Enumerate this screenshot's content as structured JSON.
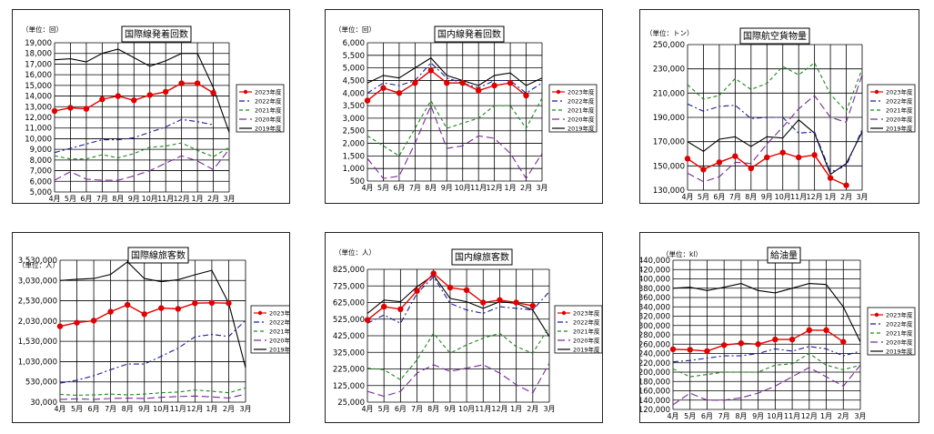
{
  "months": [
    "4月",
    "5月",
    "6月",
    "7月",
    "8月",
    "9月",
    "10月",
    "11月",
    "12月",
    "1月",
    "2月",
    "3月"
  ],
  "legend_labels": [
    "2023年度",
    "2022年度",
    "2021年度",
    "2020年度",
    "2019年度"
  ],
  "colors": {
    "y2023": "#e00000",
    "y2022": "#1a1a9a",
    "y2021": "#1a8a1a",
    "y2020": "#7a2a9a",
    "y2019": "#000000"
  },
  "chart_data": [
    {
      "type": "line",
      "title": "国際線発着回数",
      "unit": "（単位：回）",
      "ylim": [
        5000,
        19000
      ],
      "yticks": [
        5000,
        6000,
        7000,
        8000,
        9000,
        10000,
        11000,
        12000,
        13000,
        14000,
        15000,
        16000,
        17000,
        18000,
        19000
      ],
      "series": [
        {
          "name": "2023年度",
          "values": [
            12600,
            12900,
            12800,
            13700,
            14000,
            13600,
            14100,
            14400,
            15200,
            15200,
            14300,
            null
          ]
        },
        {
          "name": "2022年度",
          "values": [
            8700,
            9100,
            9500,
            9900,
            9900,
            10100,
            10600,
            11100,
            11800,
            11600,
            11300,
            null
          ]
        },
        {
          "name": "2021年度",
          "values": [
            8400,
            8100,
            8100,
            8500,
            8200,
            8600,
            9200,
            9300,
            9600,
            8900,
            8300,
            9200
          ]
        },
        {
          "name": "2020年度",
          "values": [
            6100,
            6900,
            6200,
            6100,
            6100,
            6500,
            7000,
            7700,
            8400,
            7900,
            7100,
            9000
          ]
        },
        {
          "name": "2019年度",
          "values": [
            17400,
            17500,
            17200,
            18000,
            18400,
            17600,
            16800,
            17300,
            18000,
            18000,
            14800,
            10600
          ]
        }
      ]
    },
    {
      "type": "line",
      "title": "国内線発着回数",
      "unit": "（単位：回）",
      "ylim": [
        500,
        6000
      ],
      "yticks": [
        500,
        1000,
        1500,
        2000,
        2500,
        3000,
        3500,
        4000,
        4500,
        5000,
        5500,
        6000
      ],
      "series": [
        {
          "name": "2023年度",
          "values": [
            3700,
            4200,
            4000,
            4400,
            4900,
            4400,
            4400,
            4100,
            4300,
            4400,
            3900,
            null
          ]
        },
        {
          "name": "2022年度",
          "values": [
            4000,
            4400,
            4300,
            4500,
            5200,
            4600,
            4400,
            4200,
            4500,
            4500,
            4000,
            4400
          ]
        },
        {
          "name": "2021年度",
          "values": [
            2300,
            1900,
            1500,
            2600,
            3700,
            2600,
            2800,
            3000,
            3500,
            3500,
            2600,
            3800
          ]
        },
        {
          "name": "2020年度",
          "values": [
            1400,
            600,
            700,
            2000,
            3500,
            1800,
            1900,
            2300,
            2200,
            1600,
            600,
            1600
          ]
        },
        {
          "name": "2019年度",
          "values": [
            4400,
            4700,
            4600,
            5000,
            5400,
            4700,
            4500,
            4300,
            4700,
            4800,
            4300,
            4600
          ]
        }
      ]
    },
    {
      "type": "line",
      "title": "国際航空貨物量",
      "unit": "（単位：トン）",
      "ylim": [
        130000,
        250000
      ],
      "yticks": [
        130000,
        150000,
        170000,
        190000,
        210000,
        230000,
        250000
      ],
      "series": [
        {
          "name": "2023年度",
          "values": [
            156000,
            147000,
            153000,
            158000,
            148000,
            157000,
            161000,
            157000,
            159000,
            140000,
            134000,
            null
          ]
        },
        {
          "name": "2022年度",
          "values": [
            201000,
            195000,
            199000,
            200000,
            189000,
            190000,
            190000,
            177000,
            178000,
            145000,
            150000,
            180000
          ]
        },
        {
          "name": "2021年度",
          "values": [
            217000,
            205000,
            208000,
            222000,
            213000,
            218000,
            232000,
            225000,
            235000,
            209000,
            195000,
            230000
          ]
        },
        {
          "name": "2020年度",
          "values": [
            144000,
            137000,
            141000,
            153000,
            152000,
            168000,
            182000,
            197000,
            208000,
            190000,
            186000,
            225000
          ]
        },
        {
          "name": "2019年度",
          "values": [
            170000,
            162000,
            172000,
            174000,
            166000,
            174000,
            173000,
            188000,
            177000,
            143000,
            152000,
            178000
          ]
        }
      ]
    },
    {
      "type": "line",
      "title": "国際線旅客数",
      "unit": "（単位：人）",
      "ylim": [
        30000,
        3530000
      ],
      "yticks": [
        30000,
        530000,
        1030000,
        1530000,
        2030000,
        2530000,
        3030000,
        3530000
      ],
      "series": [
        {
          "name": "2023年度",
          "values": [
            1900000,
            1990000,
            2040000,
            2260000,
            2430000,
            2200000,
            2350000,
            2330000,
            2470000,
            2480000,
            2470000,
            null
          ]
        },
        {
          "name": "2022年度",
          "values": [
            500000,
            570000,
            680000,
            830000,
            970000,
            970000,
            1160000,
            1360000,
            1640000,
            1700000,
            1650000,
            2050000
          ]
        },
        {
          "name": "2021年度",
          "values": [
            220000,
            200000,
            210000,
            230000,
            210000,
            230000,
            260000,
            280000,
            330000,
            300000,
            260000,
            380000
          ]
        },
        {
          "name": "2020年度",
          "values": [
            100000,
            110000,
            100000,
            120000,
            130000,
            120000,
            150000,
            170000,
            180000,
            160000,
            130000,
            230000
          ]
        },
        {
          "name": "2019年度",
          "values": [
            3030000,
            3060000,
            3080000,
            3180000,
            3490000,
            3080000,
            3000000,
            3050000,
            3170000,
            3280000,
            2470000,
            880000
          ]
        }
      ]
    },
    {
      "type": "line",
      "title": "国内線旅客数",
      "unit": "（単位：人）",
      "ylim": [
        25000,
        825000
      ],
      "yticks": [
        25000,
        125000,
        225000,
        325000,
        425000,
        525000,
        625000,
        725000,
        825000
      ],
      "series": [
        {
          "name": "2023年度",
          "values": [
            520000,
            600000,
            585000,
            695000,
            800000,
            715000,
            700000,
            625000,
            640000,
            625000,
            605000,
            null
          ]
        },
        {
          "name": "2022年度",
          "values": [
            500000,
            550000,
            500000,
            680000,
            780000,
            620000,
            580000,
            560000,
            600000,
            590000,
            580000,
            690000
          ]
        },
        {
          "name": "2021年度",
          "values": [
            230000,
            220000,
            160000,
            280000,
            440000,
            320000,
            370000,
            410000,
            440000,
            360000,
            320000,
            480000
          ]
        },
        {
          "name": "2020年度",
          "values": [
            90000,
            60000,
            90000,
            200000,
            250000,
            210000,
            230000,
            250000,
            200000,
            130000,
            80000,
            260000
          ]
        },
        {
          "name": "2019年度",
          "values": [
            560000,
            640000,
            630000,
            720000,
            790000,
            650000,
            630000,
            590000,
            630000,
            620000,
            580000,
            420000
          ]
        }
      ]
    },
    {
      "type": "line",
      "title": "給油量",
      "unit": "（単位：kl）",
      "ylim": [
        120000,
        440000
      ],
      "yticks": [
        120000,
        140000,
        160000,
        180000,
        200000,
        220000,
        240000,
        260000,
        280000,
        300000,
        320000,
        340000,
        360000,
        380000,
        400000,
        420000,
        440000
      ],
      "series": [
        {
          "name": "2023年度",
          "values": [
            249000,
            248000,
            245000,
            258000,
            262000,
            260000,
            270000,
            270000,
            290000,
            290000,
            265000,
            null
          ]
        },
        {
          "name": "2022年度",
          "values": [
            222000,
            225000,
            230000,
            235000,
            235000,
            240000,
            250000,
            245000,
            255000,
            250000,
            235000,
            245000
          ]
        },
        {
          "name": "2021年度",
          "values": [
            207000,
            190000,
            195000,
            200000,
            200000,
            200000,
            215000,
            218000,
            240000,
            215000,
            205000,
            215000
          ]
        },
        {
          "name": "2020年度",
          "values": [
            130000,
            155000,
            140000,
            140000,
            145000,
            155000,
            170000,
            190000,
            210000,
            190000,
            170000,
            215000
          ]
        },
        {
          "name": "2019年度",
          "values": [
            380000,
            382000,
            375000,
            382000,
            390000,
            375000,
            370000,
            380000,
            390000,
            388000,
            340000,
            265000
          ]
        }
      ]
    }
  ]
}
